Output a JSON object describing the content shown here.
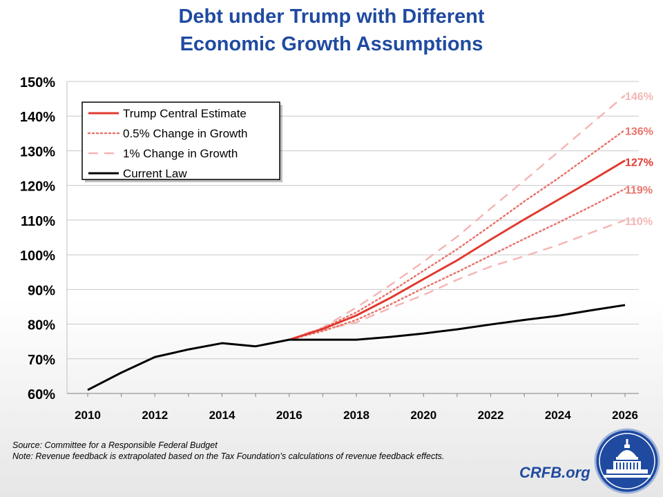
{
  "title": {
    "line1": "Debt under Trump with Different",
    "line2": "Economic Growth Assumptions"
  },
  "chart_data": {
    "type": "line",
    "title": "Debt under Trump with Different Economic Growth Assumptions",
    "xlabel": "",
    "ylabel": "",
    "xlim": [
      2010,
      2026
    ],
    "ylim": [
      60,
      150
    ],
    "x_ticks": [
      2010,
      2012,
      2014,
      2016,
      2018,
      2020,
      2022,
      2024,
      2026
    ],
    "y_ticks": [
      60,
      70,
      80,
      90,
      100,
      110,
      120,
      130,
      140,
      150
    ],
    "y_tick_labels": [
      "60%",
      "70%",
      "80%",
      "90%",
      "100%",
      "110%",
      "120%",
      "130%",
      "140%",
      "150%"
    ],
    "grid": "horizontal",
    "legend_position": "top-left",
    "series": [
      {
        "name": "Current Law",
        "style": "solid",
        "color": "#000000",
        "legend": true,
        "x": [
          2010,
          2011,
          2012,
          2013,
          2014,
          2015,
          2016,
          2017,
          2018,
          2019,
          2020,
          2021,
          2022,
          2023,
          2024,
          2025,
          2026
        ],
        "values": [
          61,
          66,
          70.5,
          72.7,
          74.5,
          73.6,
          75.5,
          75.5,
          75.5,
          76.3,
          77.3,
          78.5,
          79.9,
          81.2,
          82.4,
          84.0,
          85.5
        ]
      },
      {
        "name": "1% Change in Growth",
        "style": "dashed",
        "color": "#f4b6b4",
        "legend": true,
        "x": [
          2016,
          2017,
          2018,
          2019,
          2020,
          2021,
          2022,
          2023,
          2024,
          2025,
          2026
        ],
        "values": [
          75.5,
          78.4,
          80.5,
          84.6,
          88.4,
          92.8,
          96.6,
          99.6,
          102.8,
          106.4,
          110
        ]
      },
      {
        "name": "0.5% Change in Growth",
        "style": "dotted",
        "color": "#e8736b",
        "legend": true,
        "x": [
          2016,
          2017,
          2018,
          2019,
          2020,
          2021,
          2022,
          2023,
          2024,
          2025,
          2026
        ],
        "values": [
          75.5,
          78.0,
          81.2,
          85.6,
          90.4,
          95.0,
          99.8,
          104.6,
          109.2,
          114.0,
          119
        ]
      },
      {
        "name": "Trump Central Estimate",
        "style": "solid",
        "color": "#e03a2f",
        "legend": true,
        "x": [
          2016,
          2017,
          2018,
          2019,
          2020,
          2021,
          2022,
          2023,
          2024,
          2025,
          2026
        ],
        "values": [
          75.5,
          78.6,
          82.5,
          87.5,
          93.0,
          98.4,
          104.4,
          110.2,
          115.8,
          121.4,
          127.2
        ]
      },
      {
        "name": "0.5% Change in Growth (upper)",
        "style": "dotted",
        "color": "#e8736b",
        "legend": false,
        "x": [
          2016,
          2017,
          2018,
          2019,
          2020,
          2021,
          2022,
          2023,
          2024,
          2025,
          2026
        ],
        "values": [
          75.5,
          78.8,
          83.4,
          89.2,
          95.4,
          101.6,
          108.4,
          115.4,
          122.0,
          129.0,
          136
        ]
      },
      {
        "name": "1% Change in Growth (upper)",
        "style": "dashed",
        "color": "#f4b6b4",
        "legend": false,
        "x": [
          2016,
          2017,
          2018,
          2019,
          2020,
          2021,
          2022,
          2023,
          2024,
          2025,
          2026
        ],
        "values": [
          75.5,
          79.0,
          84.8,
          91.2,
          98.0,
          105.2,
          113.4,
          121.4,
          129.6,
          137.8,
          146
        ]
      }
    ],
    "end_labels": [
      {
        "text": "146%",
        "value": 146,
        "color": "#f4b6b4"
      },
      {
        "text": "136%",
        "value": 136,
        "color": "#e8736b"
      },
      {
        "text": "127%",
        "value": 127,
        "color": "#e03a2f"
      },
      {
        "text": "119%",
        "value": 119,
        "color": "#e8736b"
      },
      {
        "text": "110%",
        "value": 110,
        "color": "#f4b6b4"
      }
    ]
  },
  "footer": {
    "source": "Source: Committee for a Responsible Federal Budget",
    "note": "Note: Revenue feedback is extrapolated based on the Tax Foundation’s calculations of revenue feedback effects.",
    "brand": "CRFB.org"
  },
  "colors": {
    "title": "#1f4aa0",
    "trump": "#e03a2f",
    "half_pct": "#e8736b",
    "one_pct": "#f4b6b4",
    "current_law": "#000000"
  }
}
